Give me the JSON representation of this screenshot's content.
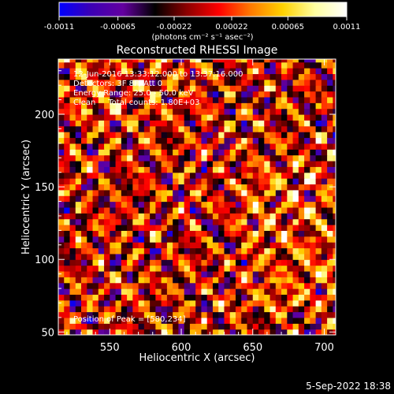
{
  "colorbar": {
    "tick_labels": [
      "-0.0011",
      "-0.00065",
      "-0.00022",
      "0.00022",
      "0.00065",
      "0.0011"
    ],
    "tick_values": [
      -0.0011,
      -0.00065,
      -0.00022,
      0.00022,
      0.00065,
      0.0011
    ],
    "range": [
      -0.0011,
      0.0011
    ],
    "unit_label": "(photons cm⁻² s⁻¹ asec⁻²)",
    "colormap": [
      "#0000ff",
      "#3c00b4",
      "#6400a0",
      "#000000",
      "#8c0000",
      "#ff0000",
      "#ff7a00",
      "#ffd200",
      "#ffffa0",
      "#ffffff"
    ]
  },
  "chart_data": {
    "type": "heatmap",
    "title": "Reconstructed RHESSI Image",
    "xlabel": "Heliocentric X (arcsec)",
    "ylabel": "Heliocentric Y (arcsec)",
    "xlim": [
      514,
      708
    ],
    "ylim": [
      48,
      238
    ],
    "xticks": [
      550,
      600,
      650,
      700
    ],
    "yticks": [
      50,
      100,
      150,
      200
    ],
    "annotations": [
      "12-Jun-2016 13:33:12.000 to 13:37:16.000",
      "Detectors: 3F 8F, Att 0",
      "Energy Range: 25.0 - 50.0 keV",
      "Clean     Total counts: 1.80E+03"
    ],
    "peak_annotation": "Position of Peak = [580,234]",
    "peak_position": [
      580,
      234
    ],
    "pixel_grid": "approx. 4 arcsec pixels, 49 x 48",
    "intensity_range": [
      -0.0011,
      0.0011
    ]
  },
  "footer": {
    "date": "5-Sep-2022 18:38"
  }
}
